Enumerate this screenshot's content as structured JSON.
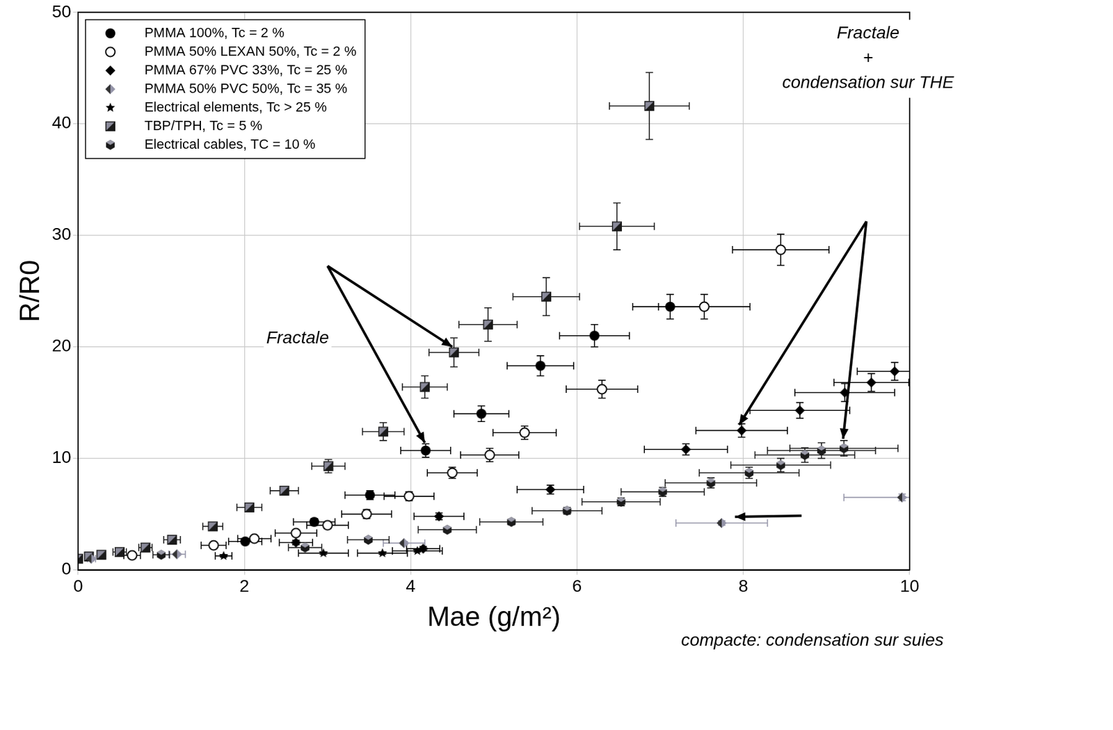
{
  "chart_data": {
    "type": "scatter",
    "x_label": "Mae (g/m²)",
    "y_label": "R/R0",
    "xlim": [
      0,
      10
    ],
    "xticks": [
      0,
      2,
      4,
      6,
      8,
      10
    ],
    "ylim": [
      0,
      50
    ],
    "yticks": [
      0,
      10,
      20,
      30,
      40,
      50
    ],
    "grid": true,
    "legend": "upper left",
    "annotations": [
      {
        "text": "Fractale"
      },
      {
        "lines": [
          "Fractale",
          "+",
          "condensation sur THE"
        ]
      },
      {
        "text": "compacte: condensation sur suies"
      }
    ],
    "series": [
      {
        "name": "PMMA 100%, Tc = 2 %",
        "color": "#000000",
        "marker": "circle",
        "x": [
          2.01,
          2.84,
          3.51,
          4.18,
          4.85,
          5.56,
          6.21,
          7.12
        ],
        "values": [
          2.55,
          4.3,
          6.7,
          10.7,
          14.0,
          18.3,
          21.0,
          23.6
        ],
        "x_err": [
          0.2,
          0.25,
          0.3,
          0.3,
          0.33,
          0.4,
          0.42,
          0.45
        ],
        "y_err": [
          0.2,
          0.3,
          0.4,
          0.6,
          0.7,
          0.9,
          1.0,
          1.1
        ]
      },
      {
        "name": "PMMA 50% LEXAN 50%, Tc = 2 %",
        "color": "#000000",
        "marker": "circle_open",
        "x": [
          0.65,
          1.63,
          2.12,
          2.62,
          3.0,
          3.47,
          3.98,
          4.5,
          4.95,
          5.37,
          6.3,
          7.53,
          8.45
        ],
        "values": [
          1.3,
          2.2,
          2.8,
          3.3,
          4.0,
          5.0,
          6.6,
          8.7,
          10.3,
          12.3,
          16.2,
          23.6,
          28.7
        ],
        "x_err": [
          0.1,
          0.15,
          0.2,
          0.25,
          0.25,
          0.3,
          0.3,
          0.3,
          0.35,
          0.38,
          0.43,
          0.55,
          0.58
        ],
        "y_err": [
          0.1,
          0.15,
          0.2,
          0.25,
          0.3,
          0.4,
          0.4,
          0.5,
          0.6,
          0.6,
          0.8,
          1.1,
          1.4
        ]
      },
      {
        "name": "PMMA 67% PVC 33%, Tc = 25 %",
        "color": "#000000",
        "marker": "diamond",
        "x": [
          2.62,
          4.15,
          4.34,
          5.68,
          7.31,
          7.98,
          8.68,
          9.22,
          9.54,
          9.82
        ],
        "values": [
          2.45,
          1.9,
          4.8,
          7.2,
          10.8,
          12.5,
          14.3,
          15.9,
          16.8,
          17.8
        ],
        "x_err": [
          0.2,
          0.2,
          0.3,
          0.4,
          0.5,
          0.55,
          0.6,
          0.6,
          0.45,
          0.45
        ],
        "y_err": [
          0.2,
          0.2,
          0.3,
          0.4,
          0.5,
          0.6,
          0.7,
          0.8,
          0.8,
          0.8
        ]
      },
      {
        "name": "PMMA 50% PVC 50%, Tc = 35 %",
        "color": "#9494a8",
        "marker": "diamond_half",
        "x": [
          0.16,
          1.19,
          3.92,
          7.74,
          9.91
        ],
        "values": [
          1.0,
          1.4,
          2.4,
          4.2,
          6.5
        ],
        "x_err": [
          0.05,
          0.1,
          0.25,
          0.55,
          0.7
        ],
        "y_err": [
          0.1,
          0.1,
          0.15,
          0.2,
          0.3
        ]
      },
      {
        "name": "Electrical elements, Tc > 25 %",
        "color": "#000000",
        "marker": "star",
        "x": [
          1.75,
          2.95,
          3.66,
          4.08
        ],
        "values": [
          1.25,
          1.5,
          1.5,
          1.7
        ],
        "x_err": [
          0.1,
          0.3,
          0.3,
          0.3
        ],
        "y_err": [
          0.1,
          0.1,
          0.1,
          0.1
        ]
      },
      {
        "name": "TBP/TPH, Tc = 5 %",
        "color": "#1a1a1a",
        "marker": "square_half",
        "x": [
          0,
          0.13,
          0.28,
          0.5,
          0.81,
          1.13,
          1.62,
          2.06,
          2.48,
          3.01,
          3.67,
          4.17,
          4.52,
          4.93,
          5.63,
          6.48,
          6.87
        ],
        "values": [
          1.0,
          1.2,
          1.35,
          1.6,
          2.0,
          2.7,
          3.9,
          5.6,
          7.1,
          9.3,
          12.4,
          16.4,
          19.5,
          22.0,
          24.5,
          30.8,
          41.6
        ],
        "x_err": [
          0.05,
          0.05,
          0.05,
          0.08,
          0.08,
          0.1,
          0.12,
          0.15,
          0.17,
          0.2,
          0.25,
          0.27,
          0.3,
          0.35,
          0.4,
          0.45,
          0.48
        ],
        "y_err": [
          0.1,
          0.1,
          0.1,
          0.15,
          0.15,
          0.2,
          0.25,
          0.3,
          0.35,
          0.6,
          0.8,
          1.0,
          1.3,
          1.5,
          1.7,
          2.1,
          3.0
        ]
      },
      {
        "name": "Electrical cables, TC = 10 %",
        "color": "#1a1a1a",
        "marker": "hexagon",
        "x": [
          1.0,
          2.73,
          3.49,
          4.44,
          5.21,
          5.88,
          6.53,
          7.03,
          7.61,
          8.07,
          8.45,
          8.74,
          8.94,
          9.21
        ],
        "values": [
          1.35,
          2.0,
          2.7,
          3.6,
          4.3,
          5.3,
          6.1,
          7.0,
          7.8,
          8.7,
          9.4,
          10.3,
          10.7,
          10.9
        ],
        "x_err": [
          0.1,
          0.2,
          0.25,
          0.35,
          0.38,
          0.42,
          0.47,
          0.5,
          0.55,
          0.6,
          0.6,
          0.6,
          0.65,
          0.65
        ],
        "y_err": [
          0.1,
          0.1,
          0.15,
          0.2,
          0.25,
          0.3,
          0.35,
          0.4,
          0.45,
          0.5,
          0.6,
          0.65,
          0.7,
          0.7
        ]
      }
    ]
  }
}
